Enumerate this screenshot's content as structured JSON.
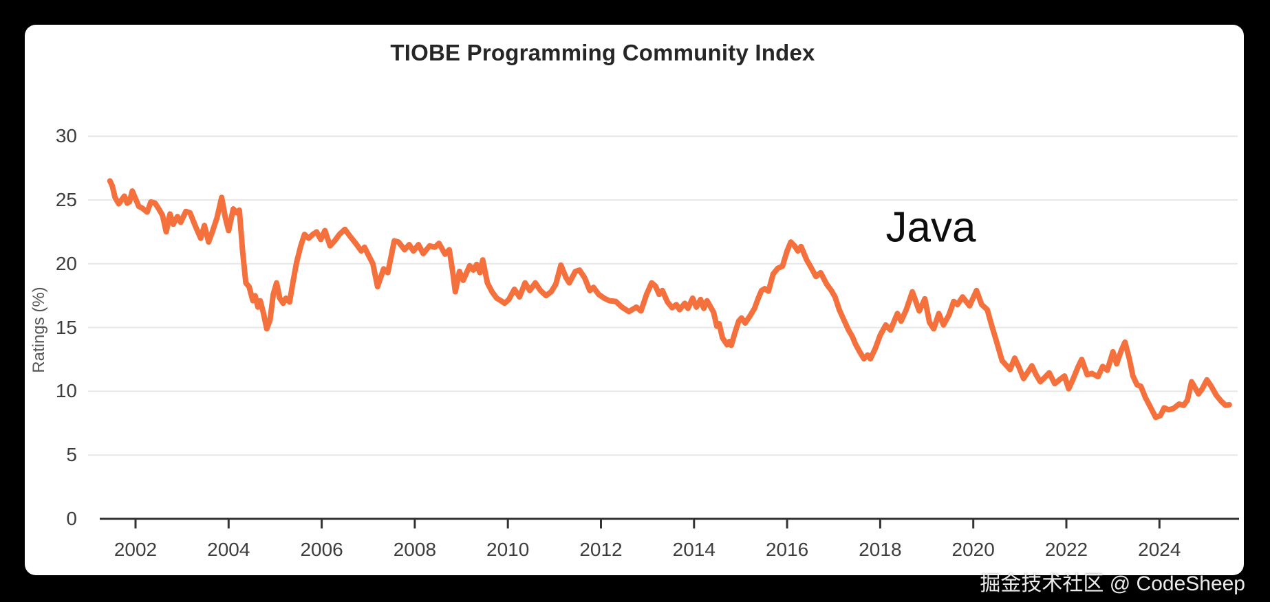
{
  "header": {
    "title": "TIOBE Programming Community Index"
  },
  "annotation": {
    "series_label": "Java"
  },
  "watermark": {
    "text": "掘金技术社区 @ CodeSheep"
  },
  "colors": {
    "background": "#000000",
    "card": "#ffffff",
    "line": "#f4703c",
    "gridline": "#e7e7e7",
    "axis": "#333333",
    "tick_text": "#3d3d3d"
  },
  "chart_data": {
    "type": "line",
    "title": "TIOBE Programming Community Index",
    "xlabel": "",
    "ylabel": "Ratings (%)",
    "legend": "none",
    "grid": "horizontal",
    "xlim": [
      2001.2,
      2025.8
    ],
    "ylim": [
      0,
      30
    ],
    "x_ticks": [
      2002,
      2004,
      2006,
      2008,
      2010,
      2012,
      2014,
      2016,
      2018,
      2020,
      2022,
      2024
    ],
    "y_ticks": [
      0,
      5,
      10,
      15,
      20,
      25,
      30
    ],
    "series": [
      {
        "name": "Java",
        "color": "#f4703c",
        "points": [
          [
            2001.45,
            26.5
          ],
          [
            2001.5,
            26.1
          ],
          [
            2001.56,
            25.2
          ],
          [
            2001.64,
            24.7
          ],
          [
            2001.7,
            25.0
          ],
          [
            2001.76,
            25.3
          ],
          [
            2001.82,
            24.75
          ],
          [
            2001.87,
            24.85
          ],
          [
            2001.93,
            25.7
          ],
          [
            2002.0,
            25.1
          ],
          [
            2002.07,
            24.5
          ],
          [
            2002.15,
            24.35
          ],
          [
            2002.25,
            24.05
          ],
          [
            2002.33,
            24.85
          ],
          [
            2002.42,
            24.75
          ],
          [
            2002.5,
            24.3
          ],
          [
            2002.58,
            23.8
          ],
          [
            2002.66,
            22.5
          ],
          [
            2002.74,
            23.9
          ],
          [
            2002.81,
            23.1
          ],
          [
            2002.9,
            23.7
          ],
          [
            2002.97,
            23.25
          ],
          [
            2003.08,
            24.1
          ],
          [
            2003.17,
            24.0
          ],
          [
            2003.28,
            23.0
          ],
          [
            2003.4,
            22.0
          ],
          [
            2003.48,
            23.0
          ],
          [
            2003.57,
            21.7
          ],
          [
            2003.65,
            22.5
          ],
          [
            2003.75,
            23.6
          ],
          [
            2003.85,
            25.2
          ],
          [
            2003.93,
            23.6
          ],
          [
            2004.0,
            22.6
          ],
          [
            2004.1,
            24.3
          ],
          [
            2004.17,
            24.0
          ],
          [
            2004.23,
            24.2
          ],
          [
            2004.3,
            21.0
          ],
          [
            2004.37,
            18.5
          ],
          [
            2004.44,
            18.2
          ],
          [
            2004.52,
            17.1
          ],
          [
            2004.57,
            17.5
          ],
          [
            2004.63,
            16.6
          ],
          [
            2004.68,
            17.1
          ],
          [
            2004.75,
            16.1
          ],
          [
            2004.82,
            14.9
          ],
          [
            2004.89,
            15.6
          ],
          [
            2004.96,
            17.6
          ],
          [
            2005.03,
            18.5
          ],
          [
            2005.1,
            17.3
          ],
          [
            2005.17,
            16.9
          ],
          [
            2005.23,
            17.3
          ],
          [
            2005.31,
            17.0
          ],
          [
            2005.39,
            18.7
          ],
          [
            2005.46,
            20.1
          ],
          [
            2005.55,
            21.4
          ],
          [
            2005.63,
            22.3
          ],
          [
            2005.72,
            22.0
          ],
          [
            2005.81,
            22.3
          ],
          [
            2005.89,
            22.5
          ],
          [
            2005.98,
            21.9
          ],
          [
            2006.07,
            22.6
          ],
          [
            2006.18,
            21.4
          ],
          [
            2006.28,
            21.8
          ],
          [
            2006.38,
            22.3
          ],
          [
            2006.5,
            22.7
          ],
          [
            2006.6,
            22.2
          ],
          [
            2006.73,
            21.6
          ],
          [
            2006.85,
            21.0
          ],
          [
            2006.92,
            21.3
          ],
          [
            2007.0,
            20.7
          ],
          [
            2007.1,
            20.0
          ],
          [
            2007.2,
            18.2
          ],
          [
            2007.33,
            19.6
          ],
          [
            2007.42,
            19.3
          ],
          [
            2007.56,
            21.8
          ],
          [
            2007.65,
            21.7
          ],
          [
            2007.78,
            21.1
          ],
          [
            2007.88,
            21.5
          ],
          [
            2007.97,
            21.0
          ],
          [
            2008.08,
            21.5
          ],
          [
            2008.18,
            20.8
          ],
          [
            2008.32,
            21.4
          ],
          [
            2008.43,
            21.3
          ],
          [
            2008.52,
            21.6
          ],
          [
            2008.65,
            20.75
          ],
          [
            2008.74,
            21.1
          ],
          [
            2008.81,
            19.5
          ],
          [
            2008.87,
            17.8
          ],
          [
            2008.96,
            19.4
          ],
          [
            2009.04,
            18.7
          ],
          [
            2009.18,
            19.85
          ],
          [
            2009.26,
            19.5
          ],
          [
            2009.33,
            19.95
          ],
          [
            2009.4,
            19.3
          ],
          [
            2009.46,
            20.3
          ],
          [
            2009.56,
            18.5
          ],
          [
            2009.66,
            17.8
          ],
          [
            2009.76,
            17.3
          ],
          [
            2009.85,
            17.1
          ],
          [
            2009.93,
            16.9
          ],
          [
            2010.02,
            17.2
          ],
          [
            2010.14,
            18.0
          ],
          [
            2010.25,
            17.4
          ],
          [
            2010.37,
            18.5
          ],
          [
            2010.47,
            17.9
          ],
          [
            2010.59,
            18.5
          ],
          [
            2010.7,
            17.9
          ],
          [
            2010.82,
            17.5
          ],
          [
            2010.93,
            17.8
          ],
          [
            2011.03,
            18.4
          ],
          [
            2011.14,
            19.9
          ],
          [
            2011.25,
            18.9
          ],
          [
            2011.32,
            18.5
          ],
          [
            2011.45,
            19.4
          ],
          [
            2011.54,
            19.5
          ],
          [
            2011.65,
            18.9
          ],
          [
            2011.76,
            17.9
          ],
          [
            2011.84,
            18.15
          ],
          [
            2011.95,
            17.6
          ],
          [
            2012.07,
            17.3
          ],
          [
            2012.18,
            17.1
          ],
          [
            2012.32,
            17.05
          ],
          [
            2012.45,
            16.6
          ],
          [
            2012.6,
            16.25
          ],
          [
            2012.76,
            16.6
          ],
          [
            2012.86,
            16.3
          ],
          [
            2012.98,
            17.6
          ],
          [
            2013.09,
            18.5
          ],
          [
            2013.17,
            18.25
          ],
          [
            2013.25,
            17.6
          ],
          [
            2013.32,
            17.9
          ],
          [
            2013.43,
            17.0
          ],
          [
            2013.53,
            16.55
          ],
          [
            2013.62,
            16.8
          ],
          [
            2013.69,
            16.4
          ],
          [
            2013.8,
            16.9
          ],
          [
            2013.87,
            16.5
          ],
          [
            2013.97,
            17.3
          ],
          [
            2014.05,
            16.6
          ],
          [
            2014.14,
            17.2
          ],
          [
            2014.21,
            16.5
          ],
          [
            2014.28,
            17.1
          ],
          [
            2014.42,
            16.2
          ],
          [
            2014.49,
            15.1
          ],
          [
            2014.54,
            15.3
          ],
          [
            2014.61,
            14.2
          ],
          [
            2014.71,
            13.65
          ],
          [
            2014.76,
            13.9
          ],
          [
            2014.8,
            13.6
          ],
          [
            2014.88,
            14.6
          ],
          [
            2014.96,
            15.5
          ],
          [
            2015.02,
            15.75
          ],
          [
            2015.1,
            15.35
          ],
          [
            2015.2,
            15.9
          ],
          [
            2015.3,
            16.5
          ],
          [
            2015.38,
            17.3
          ],
          [
            2015.45,
            17.9
          ],
          [
            2015.52,
            18.05
          ],
          [
            2015.6,
            17.85
          ],
          [
            2015.7,
            19.2
          ],
          [
            2015.8,
            19.65
          ],
          [
            2015.9,
            19.8
          ],
          [
            2016.0,
            21.0
          ],
          [
            2016.08,
            21.7
          ],
          [
            2016.16,
            21.4
          ],
          [
            2016.23,
            21.0
          ],
          [
            2016.3,
            21.35
          ],
          [
            2016.42,
            20.3
          ],
          [
            2016.5,
            19.8
          ],
          [
            2016.62,
            19.0
          ],
          [
            2016.72,
            19.3
          ],
          [
            2016.85,
            18.4
          ],
          [
            2016.95,
            17.9
          ],
          [
            2017.03,
            17.4
          ],
          [
            2017.12,
            16.4
          ],
          [
            2017.22,
            15.6
          ],
          [
            2017.32,
            14.8
          ],
          [
            2017.4,
            14.3
          ],
          [
            2017.47,
            13.7
          ],
          [
            2017.56,
            13.1
          ],
          [
            2017.65,
            12.55
          ],
          [
            2017.73,
            12.85
          ],
          [
            2017.79,
            12.55
          ],
          [
            2017.9,
            13.4
          ],
          [
            2018.0,
            14.4
          ],
          [
            2018.12,
            15.2
          ],
          [
            2018.22,
            14.8
          ],
          [
            2018.37,
            16.1
          ],
          [
            2018.45,
            15.5
          ],
          [
            2018.56,
            16.4
          ],
          [
            2018.69,
            17.8
          ],
          [
            2018.84,
            16.3
          ],
          [
            2018.96,
            17.25
          ],
          [
            2019.06,
            15.4
          ],
          [
            2019.15,
            14.9
          ],
          [
            2019.26,
            16.1
          ],
          [
            2019.36,
            15.2
          ],
          [
            2019.48,
            16.0
          ],
          [
            2019.58,
            17.05
          ],
          [
            2019.66,
            16.8
          ],
          [
            2019.77,
            17.4
          ],
          [
            2019.92,
            16.7
          ],
          [
            2020.07,
            17.9
          ],
          [
            2020.18,
            16.8
          ],
          [
            2020.3,
            16.4
          ],
          [
            2020.4,
            15.1
          ],
          [
            2020.5,
            13.9
          ],
          [
            2020.62,
            12.4
          ],
          [
            2020.72,
            12.0
          ],
          [
            2020.79,
            11.7
          ],
          [
            2020.89,
            12.6
          ],
          [
            2020.98,
            11.9
          ],
          [
            2021.08,
            11.0
          ],
          [
            2021.17,
            11.5
          ],
          [
            2021.26,
            12.0
          ],
          [
            2021.35,
            11.3
          ],
          [
            2021.44,
            10.75
          ],
          [
            2021.54,
            11.1
          ],
          [
            2021.63,
            11.45
          ],
          [
            2021.75,
            10.6
          ],
          [
            2021.85,
            10.9
          ],
          [
            2021.96,
            11.2
          ],
          [
            2022.05,
            10.2
          ],
          [
            2022.15,
            11.0
          ],
          [
            2022.25,
            11.9
          ],
          [
            2022.33,
            12.5
          ],
          [
            2022.45,
            11.3
          ],
          [
            2022.55,
            11.4
          ],
          [
            2022.68,
            11.15
          ],
          [
            2022.78,
            11.95
          ],
          [
            2022.88,
            11.65
          ],
          [
            2023.0,
            13.1
          ],
          [
            2023.08,
            12.15
          ],
          [
            2023.18,
            13.2
          ],
          [
            2023.26,
            13.85
          ],
          [
            2023.35,
            12.6
          ],
          [
            2023.43,
            11.2
          ],
          [
            2023.52,
            10.5
          ],
          [
            2023.6,
            10.4
          ],
          [
            2023.7,
            9.5
          ],
          [
            2023.8,
            8.8
          ],
          [
            2023.92,
            7.95
          ],
          [
            2024.02,
            8.1
          ],
          [
            2024.1,
            8.7
          ],
          [
            2024.2,
            8.55
          ],
          [
            2024.3,
            8.65
          ],
          [
            2024.42,
            9.0
          ],
          [
            2024.52,
            8.9
          ],
          [
            2024.6,
            9.3
          ],
          [
            2024.69,
            10.75
          ],
          [
            2024.84,
            9.8
          ],
          [
            2024.92,
            10.2
          ],
          [
            2025.02,
            10.9
          ],
          [
            2025.12,
            10.35
          ],
          [
            2025.22,
            9.7
          ],
          [
            2025.32,
            9.25
          ],
          [
            2025.42,
            8.9
          ],
          [
            2025.5,
            8.95
          ]
        ]
      }
    ]
  }
}
